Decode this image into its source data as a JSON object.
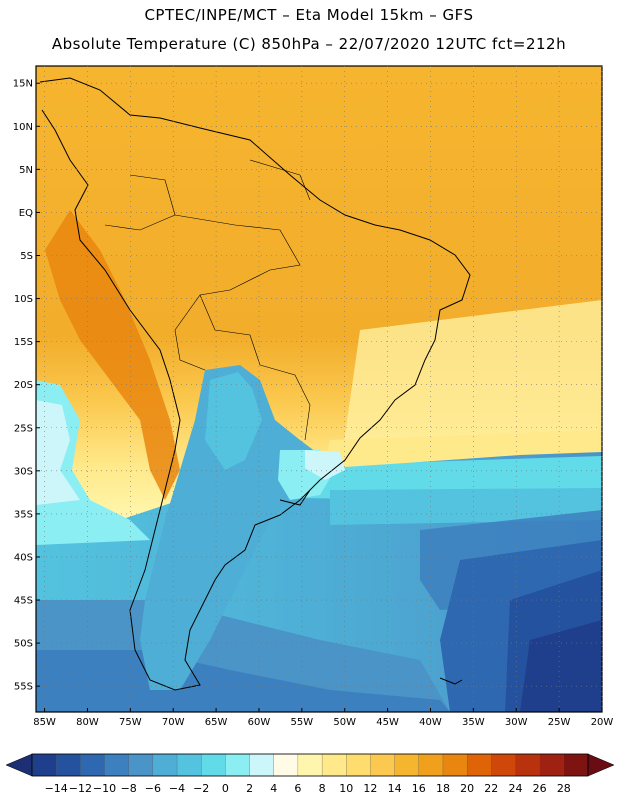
{
  "header": {
    "line1": "CPTEC/INPE/MCT –   Eta Model 15km – GFS",
    "line2": "Absolute Temperature (C) 850hPa – 22/07/2020 12UTC fct=212h"
  },
  "map": {
    "lat_labels": [
      "15N",
      "10N",
      "5N",
      "EQ",
      "5S",
      "10S",
      "15S",
      "20S",
      "25S",
      "30S",
      "35S",
      "40S",
      "45S",
      "50S",
      "55S"
    ],
    "lon_labels": [
      "85W",
      "80W",
      "75W",
      "70W",
      "65W",
      "60W",
      "55W",
      "50W",
      "45W",
      "40W",
      "35W",
      "30W",
      "25W",
      "20W"
    ],
    "lat_range": [
      17.0,
      -58.0
    ],
    "lon_range": [
      -86.0,
      -20.0
    ]
  },
  "colorbar": {
    "labels": [
      "-14",
      "-12",
      "-10",
      "-8",
      "-6",
      "-4",
      "-2",
      "0",
      "2",
      "4",
      "6",
      "8",
      "10",
      "12",
      "14",
      "16",
      "18",
      "20",
      "22",
      "24",
      "26",
      "28"
    ],
    "colors": [
      "#1f3f8c",
      "#24529f",
      "#2e68b0",
      "#3c80bf",
      "#4a94c8",
      "#4eaed5",
      "#53c3df",
      "#62dbe9",
      "#8aeef3",
      "#cdf6fa",
      "#fffbe6",
      "#fff6ad",
      "#ffe98a",
      "#ffdc6e",
      "#fbc94f",
      "#f6b52f",
      "#f0a01c",
      "#e9860f",
      "#df6408",
      "#cf4809",
      "#b8320d",
      "#9e2112",
      "#7e1411"
    ],
    "under_color": "#1c2f73",
    "over_color": "#6a0c14"
  }
}
